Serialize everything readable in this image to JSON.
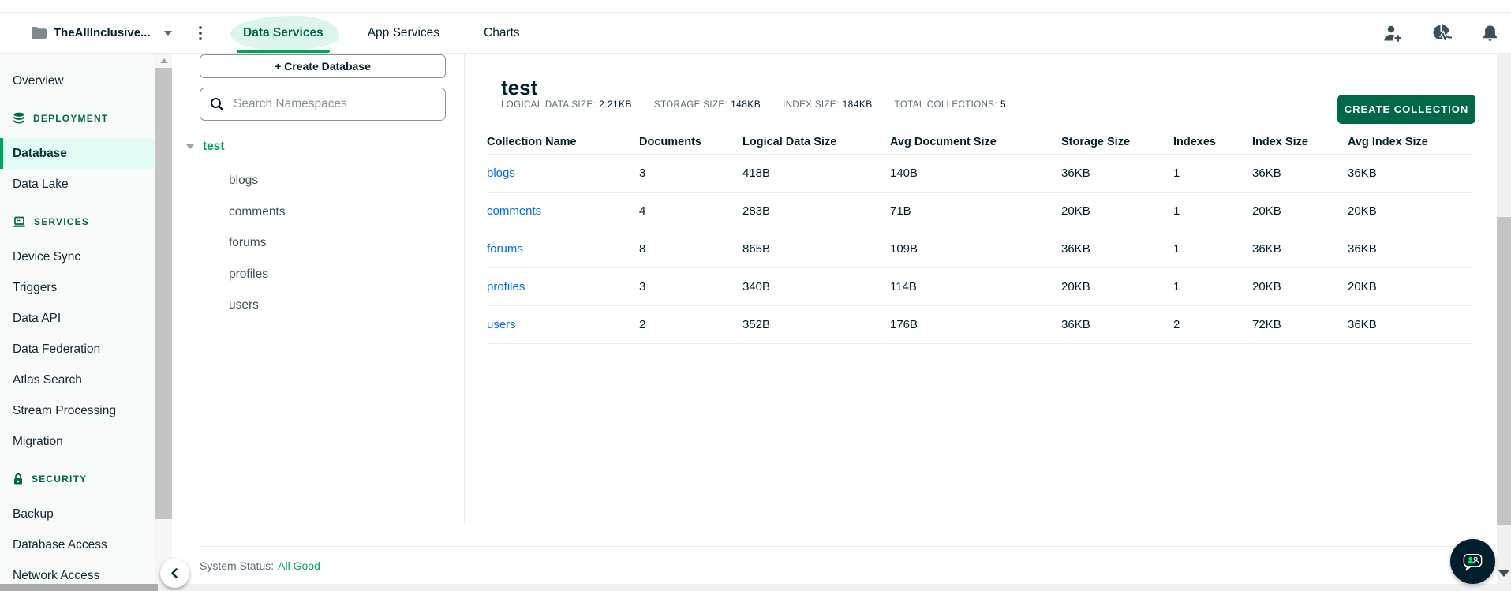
{
  "header": {
    "org_label": "TheAllInclusive...",
    "tabs": [
      {
        "label": "Data Services",
        "active": true
      },
      {
        "label": "App Services",
        "active": false
      },
      {
        "label": "Charts",
        "active": false
      }
    ],
    "icons": [
      "folder-icon",
      "caret-down-icon",
      "kebab-menu-icon",
      "invite-user-icon",
      "activity-feed-icon",
      "notification-bell-icon"
    ]
  },
  "sidebar": {
    "items": [
      {
        "type": "link",
        "label": "Overview",
        "active": false
      },
      {
        "type": "section",
        "label": "DEPLOYMENT",
        "icon": "database-icon"
      },
      {
        "type": "link",
        "label": "Database",
        "active": true
      },
      {
        "type": "link",
        "label": "Data Lake",
        "active": false
      },
      {
        "type": "section",
        "label": "SERVICES",
        "icon": "laptop-icon"
      },
      {
        "type": "link",
        "label": "Device Sync",
        "active": false
      },
      {
        "type": "link",
        "label": "Triggers",
        "active": false
      },
      {
        "type": "link",
        "label": "Data API",
        "active": false
      },
      {
        "type": "link",
        "label": "Data Federation",
        "active": false
      },
      {
        "type": "link",
        "label": "Atlas Search",
        "active": false
      },
      {
        "type": "link",
        "label": "Stream Processing",
        "active": false
      },
      {
        "type": "link",
        "label": "Migration",
        "active": false
      },
      {
        "type": "section",
        "label": "SECURITY",
        "icon": "lock-icon"
      },
      {
        "type": "link",
        "label": "Backup",
        "active": false
      },
      {
        "type": "link",
        "label": "Database Access",
        "active": false
      },
      {
        "type": "link",
        "label": "Network Access",
        "active": false
      }
    ]
  },
  "namespace_panel": {
    "create_database_label": "+ Create Database",
    "search_placeholder": "Search Namespaces",
    "database": "test",
    "collections": [
      "blogs",
      "comments",
      "forums",
      "profiles",
      "users"
    ]
  },
  "main": {
    "title": "test",
    "stats": [
      {
        "label": "LOGICAL DATA SIZE:",
        "value": "2.21KB"
      },
      {
        "label": "STORAGE SIZE:",
        "value": "148KB"
      },
      {
        "label": "INDEX SIZE:",
        "value": "184KB"
      },
      {
        "label": "TOTAL COLLECTIONS:",
        "value": "5"
      }
    ],
    "create_collection_label": "CREATE COLLECTION",
    "table": {
      "columns": [
        "Collection Name",
        "Documents",
        "Logical Data Size",
        "Avg Document Size",
        "Storage Size",
        "Indexes",
        "Index Size",
        "Avg Index Size"
      ],
      "rows": [
        {
          "name": "blogs",
          "values": [
            "3",
            "418B",
            "140B",
            "36KB",
            "1",
            "36KB",
            "36KB"
          ]
        },
        {
          "name": "comments",
          "values": [
            "4",
            "283B",
            "71B",
            "20KB",
            "1",
            "20KB",
            "20KB"
          ]
        },
        {
          "name": "forums",
          "values": [
            "8",
            "865B",
            "109B",
            "36KB",
            "1",
            "36KB",
            "36KB"
          ]
        },
        {
          "name": "profiles",
          "values": [
            "3",
            "340B",
            "114B",
            "20KB",
            "1",
            "20KB",
            "20KB"
          ]
        },
        {
          "name": "users",
          "values": [
            "2",
            "352B",
            "176B",
            "36KB",
            "2",
            "72KB",
            "36KB"
          ]
        }
      ]
    }
  },
  "status_bar": {
    "label": "System Status:",
    "value": "All Good"
  },
  "colors": {
    "brand_green": "#00684A",
    "accent_green": "#00A35C",
    "bright_green": "#00ED64",
    "link_blue": "#016BF8",
    "dark_text": "#001E2B",
    "muted_text": "#5C6C75",
    "active_item_bg": "#E3FCF7",
    "tab_highlight": "#DCF6EC",
    "border": "#E8EDEB"
  }
}
